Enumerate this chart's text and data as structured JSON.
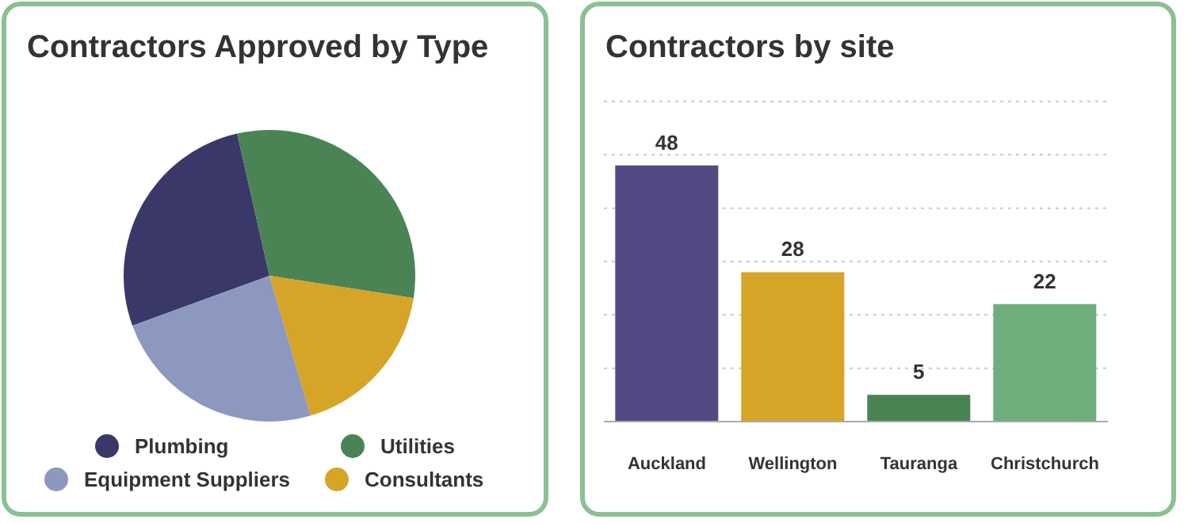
{
  "chart_data": [
    {
      "type": "pie",
      "title": "Contractors Approved by Type",
      "categories": [
        "Plumbing",
        "Utilities",
        "Consultants",
        "Equipment Suppliers"
      ],
      "values": [
        27,
        31,
        18,
        24
      ],
      "colors": [
        "#3a3868",
        "#4a8455",
        "#d6a427",
        "#8c98bf"
      ],
      "legend": "bottom"
    },
    {
      "type": "bar",
      "title": "Contractors by site",
      "categories": [
        "Auckland",
        "Wellington",
        "Tauranga",
        "Christchurch"
      ],
      "values": [
        48,
        28,
        5,
        22
      ],
      "colors": [
        "#524a82",
        "#d6a427",
        "#4a8455",
        "#6fae7c"
      ],
      "ylim": [
        0,
        60
      ],
      "grid": "y",
      "tick_labels": "x",
      "data_labels": true
    }
  ]
}
